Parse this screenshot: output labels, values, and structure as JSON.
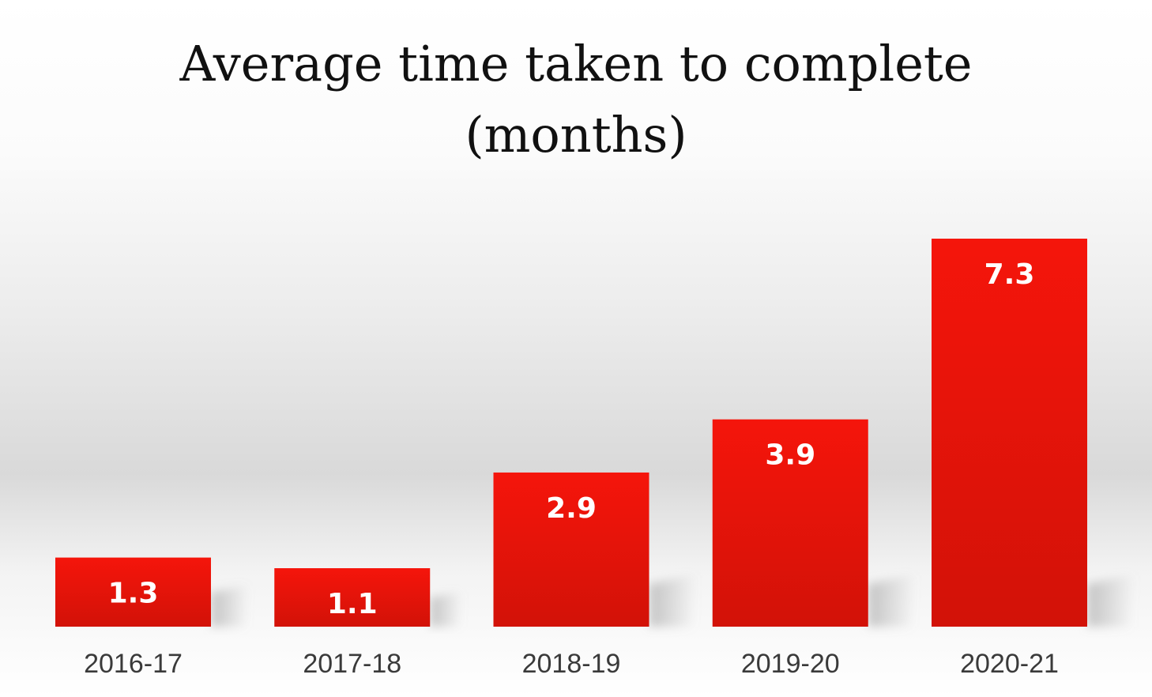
{
  "chart_data": {
    "type": "bar",
    "title": "Average time taken to complete (months)",
    "categories": [
      "2016-17",
      "2017-18",
      "2018-19",
      "2019-20",
      "2020-21"
    ],
    "values": [
      1.3,
      1.1,
      2.9,
      3.9,
      7.3
    ],
    "value_labels": [
      "1.3",
      "1.1",
      "2.9",
      "3.9",
      "7.3"
    ],
    "xlabel": "",
    "ylabel": "",
    "ylim": [
      0,
      7.3
    ],
    "grid": false,
    "legend": "none",
    "data_labels": "inside-top",
    "bar_color": "#f5150b",
    "bar_color_dark": "#d21208"
  }
}
